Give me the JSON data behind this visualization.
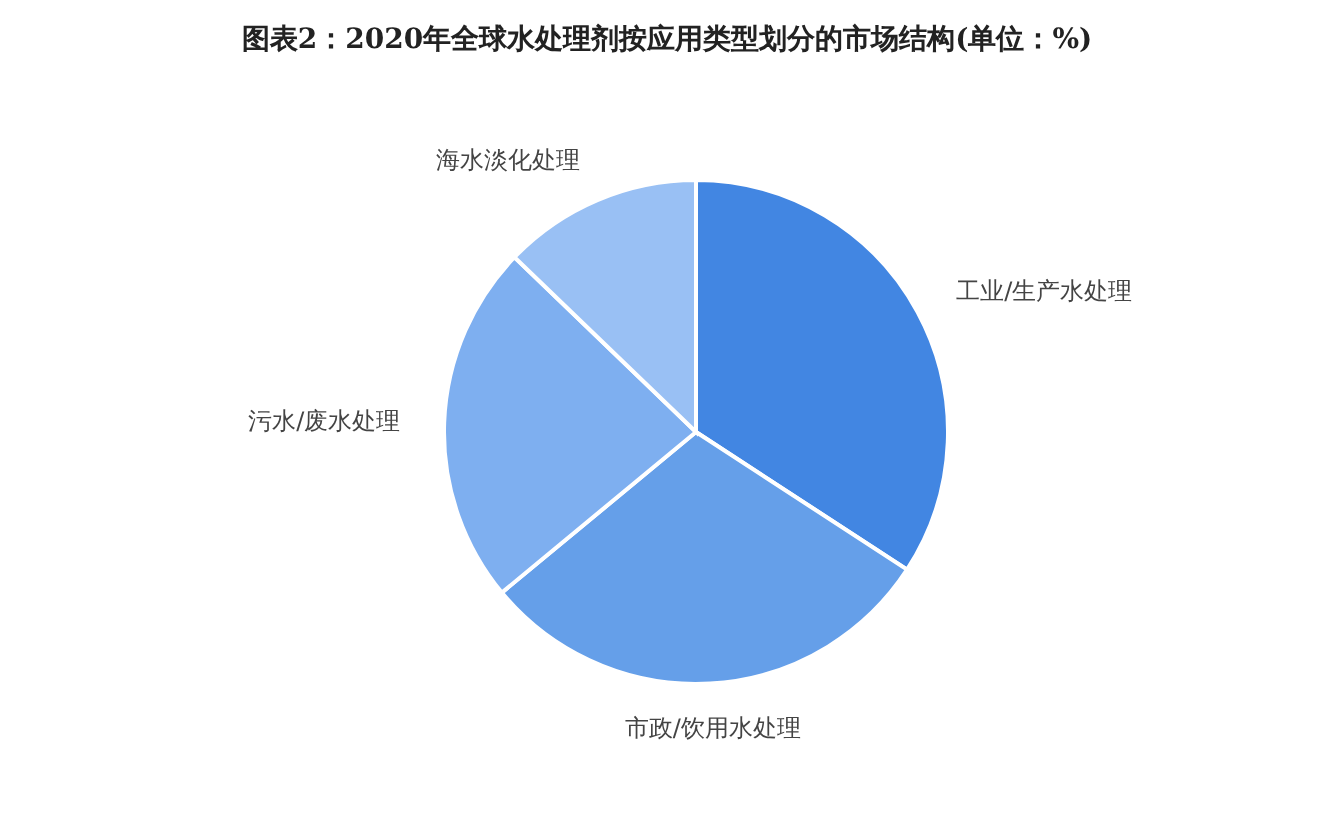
{
  "chart_data": {
    "type": "pie",
    "title": "图表2：2020年全球水处理剂按应用类型划分的市场结构(单位：%)",
    "categories": [
      "工业/生产水处理",
      "市政/饮用水处理",
      "污水/废水处理",
      "海水淡化处理"
    ],
    "values": [
      34.2,
      29.8,
      23.2,
      12.8
    ],
    "colors": [
      "#4286e2",
      "#659fe9",
      "#7eaff0",
      "#99c0f4"
    ]
  }
}
